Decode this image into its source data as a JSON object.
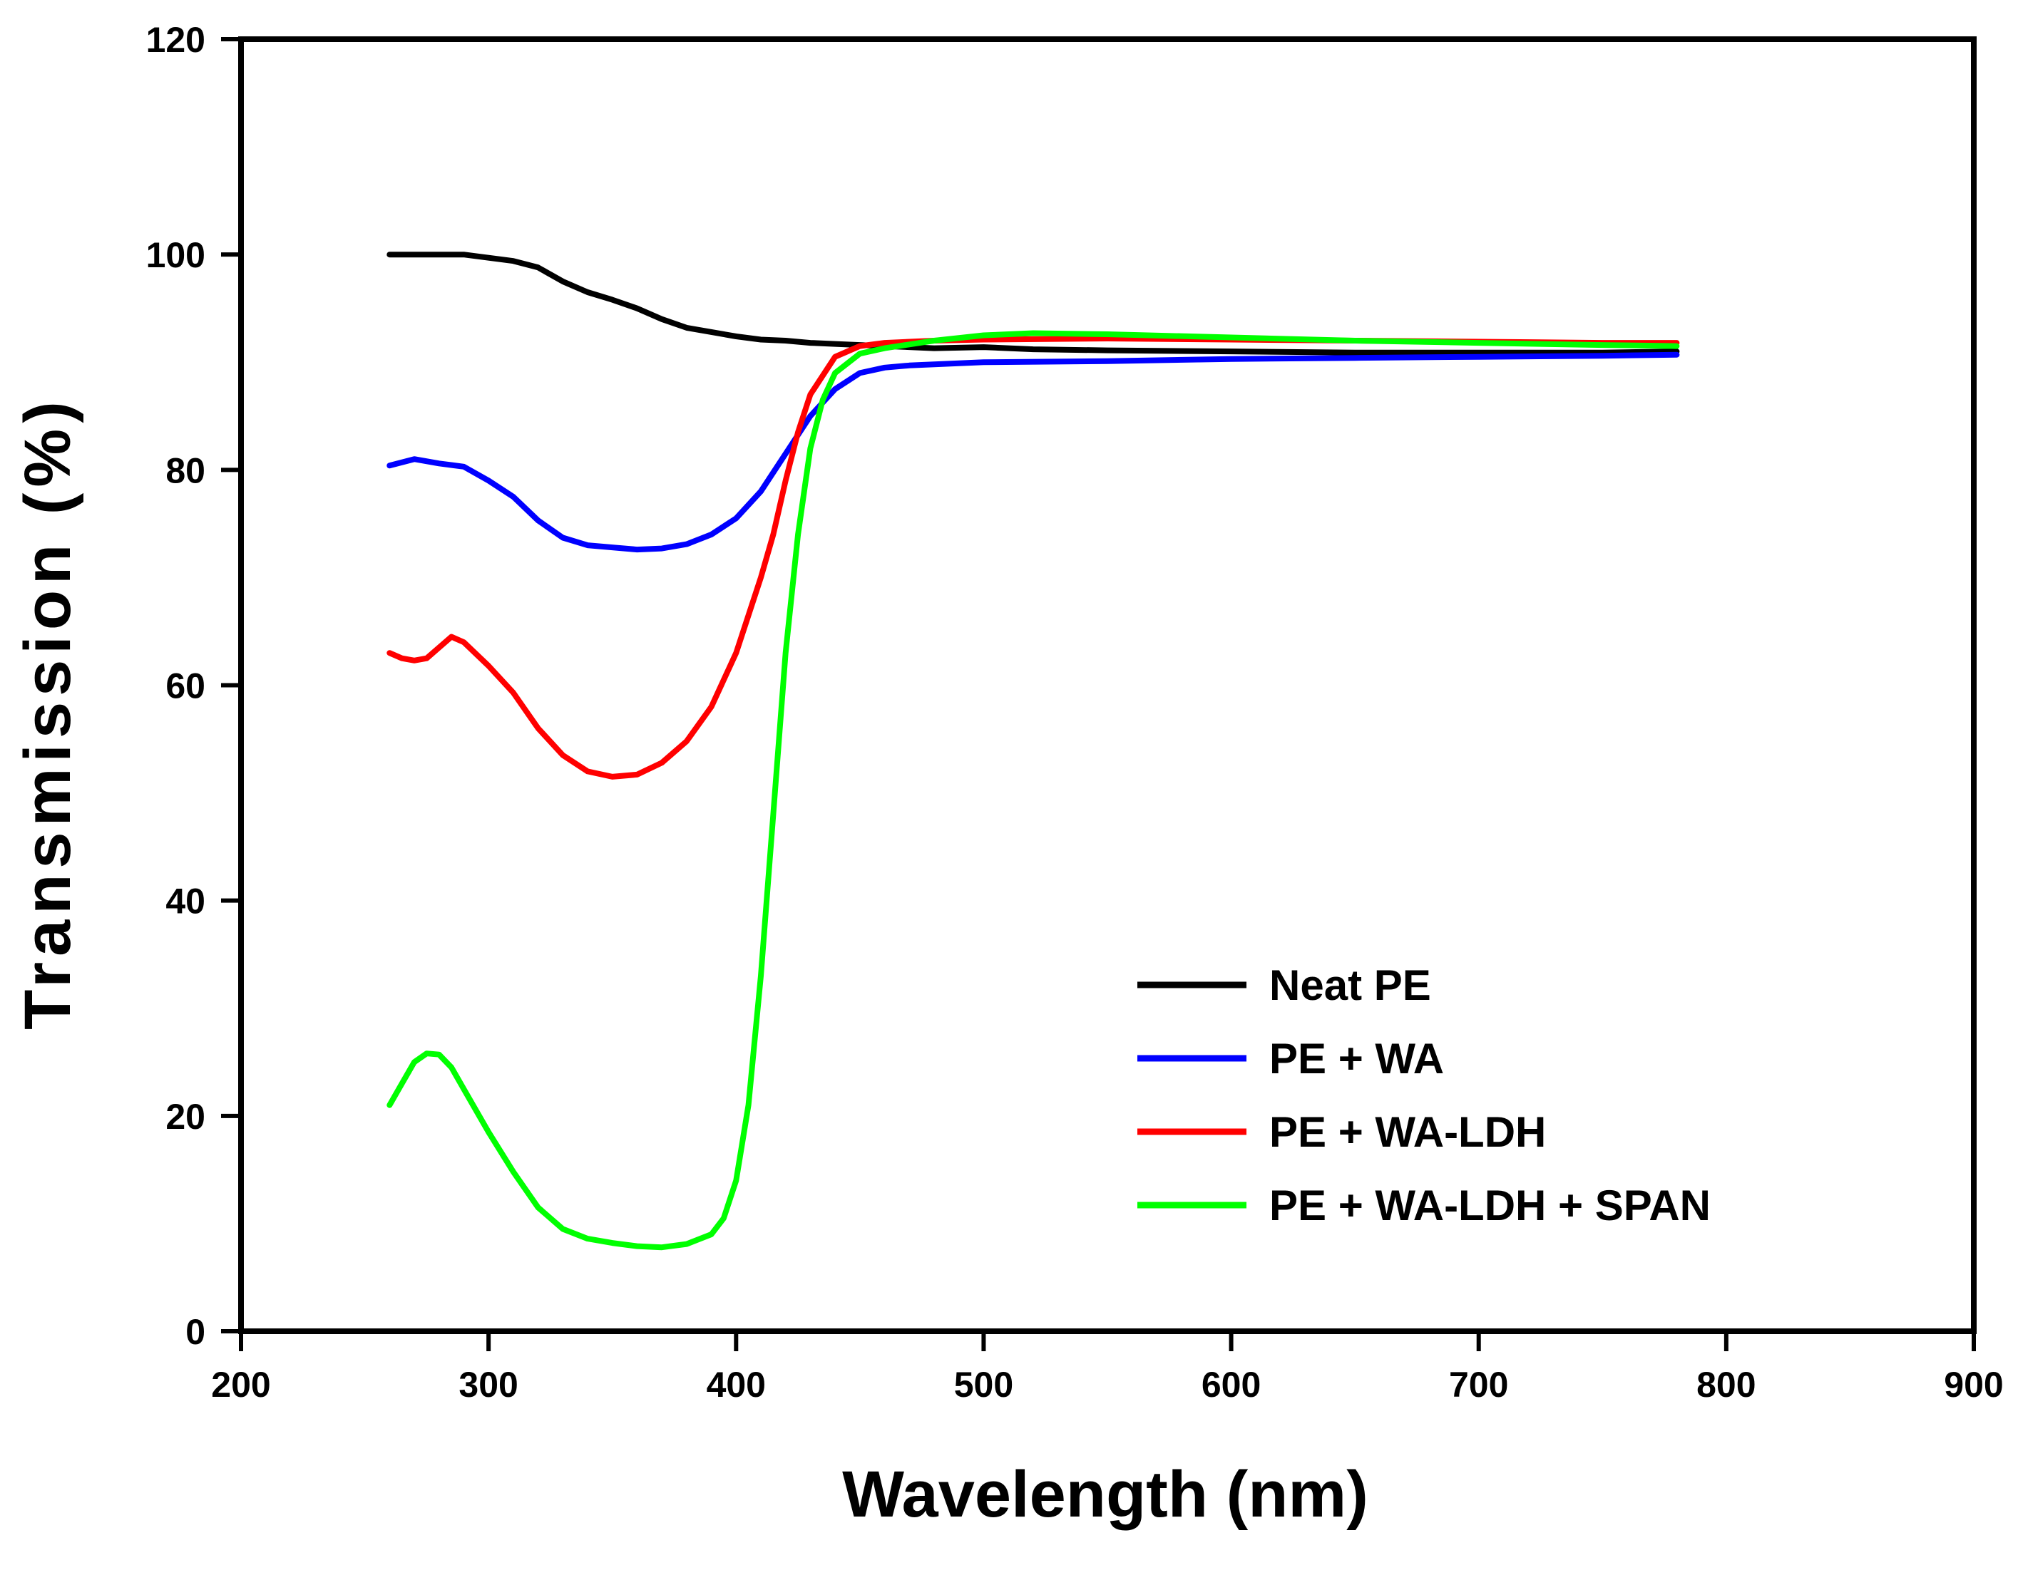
{
  "chart_data": {
    "type": "line",
    "title": "",
    "xlabel": "Wavelength (nm)",
    "ylabel": "Transmission (%)",
    "xlim": [
      200,
      900
    ],
    "ylim": [
      0,
      120
    ],
    "xticks": [
      200,
      300,
      400,
      500,
      600,
      700,
      800,
      900
    ],
    "yticks": [
      0,
      20,
      40,
      60,
      80,
      100,
      120
    ],
    "xtick_labels": [
      "200",
      "300",
      "400",
      "500",
      "600",
      "700",
      "800",
      "900"
    ],
    "ytick_labels": [
      "0",
      "20",
      "40",
      "60",
      "80",
      "100",
      "120"
    ],
    "grid": false,
    "legend_position": "lower-right",
    "series": [
      {
        "name": "Neat PE",
        "color": "#000000",
        "points": [
          [
            260,
            100
          ],
          [
            270,
            100
          ],
          [
            280,
            100
          ],
          [
            290,
            100
          ],
          [
            300,
            99.7
          ],
          [
            310,
            99.4
          ],
          [
            320,
            98.8
          ],
          [
            330,
            97.5
          ],
          [
            340,
            96.5
          ],
          [
            350,
            95.8
          ],
          [
            360,
            95
          ],
          [
            370,
            94
          ],
          [
            380,
            93.2
          ],
          [
            390,
            92.8
          ],
          [
            400,
            92.4
          ],
          [
            410,
            92.1
          ],
          [
            420,
            92
          ],
          [
            430,
            91.8
          ],
          [
            440,
            91.7
          ],
          [
            450,
            91.6
          ],
          [
            460,
            91.5
          ],
          [
            470,
            91.4
          ],
          [
            480,
            91.3
          ],
          [
            500,
            91.4
          ],
          [
            520,
            91.2
          ],
          [
            550,
            91.1
          ],
          [
            600,
            91
          ],
          [
            650,
            90.9
          ],
          [
            700,
            90.9
          ],
          [
            750,
            90.9
          ],
          [
            780,
            91
          ]
        ]
      },
      {
        "name": "PE + WA",
        "color": "#0000ff",
        "points": [
          [
            260,
            80.4
          ],
          [
            270,
            81
          ],
          [
            280,
            80.6
          ],
          [
            290,
            80.3
          ],
          [
            300,
            79
          ],
          [
            310,
            77.5
          ],
          [
            320,
            75.3
          ],
          [
            330,
            73.7
          ],
          [
            340,
            73
          ],
          [
            350,
            72.8
          ],
          [
            360,
            72.6
          ],
          [
            370,
            72.7
          ],
          [
            380,
            73.1
          ],
          [
            390,
            74
          ],
          [
            400,
            75.5
          ],
          [
            410,
            78
          ],
          [
            420,
            81.5
          ],
          [
            430,
            85
          ],
          [
            440,
            87.5
          ],
          [
            450,
            89
          ],
          [
            460,
            89.5
          ],
          [
            470,
            89.7
          ],
          [
            480,
            89.8
          ],
          [
            500,
            90
          ],
          [
            550,
            90.1
          ],
          [
            600,
            90.3
          ],
          [
            650,
            90.4
          ],
          [
            700,
            90.5
          ],
          [
            750,
            90.6
          ],
          [
            780,
            90.7
          ]
        ]
      },
      {
        "name": "PE + WA-LDH",
        "color": "#ff0000",
        "points": [
          [
            260,
            63
          ],
          [
            265,
            62.5
          ],
          [
            270,
            62.3
          ],
          [
            275,
            62.5
          ],
          [
            280,
            63.5
          ],
          [
            285,
            64.5
          ],
          [
            290,
            64
          ],
          [
            300,
            61.8
          ],
          [
            310,
            59.3
          ],
          [
            320,
            56
          ],
          [
            330,
            53.5
          ],
          [
            340,
            52
          ],
          [
            350,
            51.5
          ],
          [
            360,
            51.7
          ],
          [
            370,
            52.8
          ],
          [
            380,
            54.8
          ],
          [
            390,
            58
          ],
          [
            400,
            63
          ],
          [
            410,
            70
          ],
          [
            415,
            74
          ],
          [
            420,
            79
          ],
          [
            425,
            83.5
          ],
          [
            430,
            87
          ],
          [
            440,
            90.5
          ],
          [
            450,
            91.5
          ],
          [
            460,
            91.8
          ],
          [
            480,
            92
          ],
          [
            500,
            92.1
          ],
          [
            550,
            92.2
          ],
          [
            600,
            92.1
          ],
          [
            650,
            92
          ],
          [
            700,
            91.9
          ],
          [
            750,
            91.8
          ],
          [
            780,
            91.8
          ]
        ]
      },
      {
        "name": "PE + WA-LDH + SPAN",
        "color": "#00ff00",
        "points": [
          [
            260,
            21
          ],
          [
            265,
            23
          ],
          [
            270,
            25
          ],
          [
            275,
            25.8
          ],
          [
            280,
            25.7
          ],
          [
            285,
            24.5
          ],
          [
            290,
            22.5
          ],
          [
            300,
            18.5
          ],
          [
            310,
            14.8
          ],
          [
            320,
            11.5
          ],
          [
            330,
            9.5
          ],
          [
            340,
            8.6
          ],
          [
            350,
            8.2
          ],
          [
            360,
            7.9
          ],
          [
            370,
            7.8
          ],
          [
            380,
            8.1
          ],
          [
            390,
            9
          ],
          [
            395,
            10.5
          ],
          [
            400,
            14
          ],
          [
            405,
            21
          ],
          [
            410,
            33
          ],
          [
            415,
            48
          ],
          [
            420,
            63
          ],
          [
            425,
            74
          ],
          [
            430,
            82
          ],
          [
            435,
            86.5
          ],
          [
            440,
            89
          ],
          [
            450,
            90.8
          ],
          [
            460,
            91.3
          ],
          [
            480,
            92
          ],
          [
            500,
            92.5
          ],
          [
            520,
            92.7
          ],
          [
            550,
            92.6
          ],
          [
            600,
            92.3
          ],
          [
            650,
            92
          ],
          [
            700,
            91.8
          ],
          [
            750,
            91.6
          ],
          [
            780,
            91.5
          ]
        ]
      }
    ]
  }
}
